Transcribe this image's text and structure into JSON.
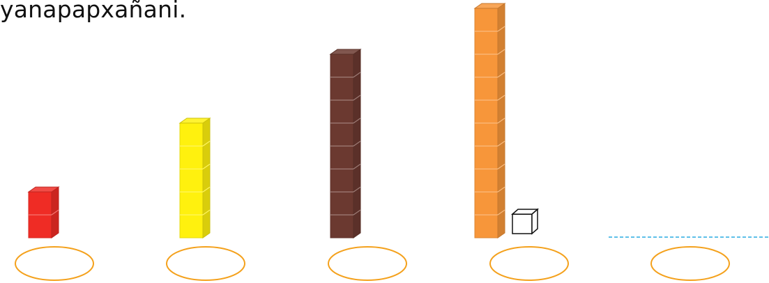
{
  "instruction": "yanapapxañani.",
  "towers": [
    {
      "cubes": 2,
      "color": "#ef2c25"
    },
    {
      "cubes": 5,
      "color": "#fff10e"
    },
    {
      "cubes": 8,
      "color": "#6b3930"
    },
    {
      "cubes": 10,
      "color": "#f7963a"
    }
  ],
  "single_cube": {
    "cubes": 1,
    "color": "#ffffff"
  },
  "answer_ovals": [
    "",
    "",
    "",
    "",
    ""
  ],
  "colors": {
    "oval_stroke": "#f4a11c",
    "dashed_line": "#29abe2"
  }
}
